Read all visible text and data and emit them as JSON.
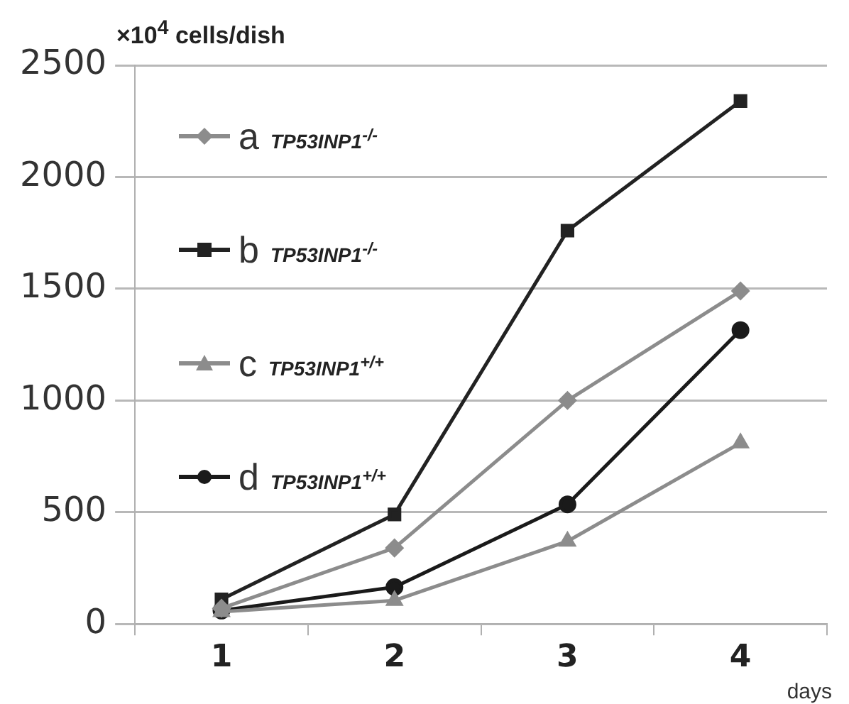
{
  "chart_data": {
    "type": "line",
    "ylabel": "×10$^{4}$ cells/dish",
    "xlabel": "days",
    "categories": [
      "1",
      "2",
      "3",
      "4"
    ],
    "series": [
      {
        "name": "a TP53INP1$^{-/-}$",
        "color": "#8c8c8c",
        "marker": "diamond",
        "values": [
          70,
          340,
          1000,
          1490
        ]
      },
      {
        "name": "b TP53INP1$^{-/-}$",
        "color": "#222222",
        "marker": "square",
        "values": [
          110,
          490,
          1760,
          2340
        ]
      },
      {
        "name": "c TP53INP1$^{+/+}$",
        "color": "#8c8c8c",
        "marker": "triangle",
        "values": [
          55,
          105,
          370,
          810
        ]
      },
      {
        "name": "d TP53INP1$^{+/+}$",
        "color": "#1a1a1a",
        "marker": "circle",
        "values": [
          60,
          165,
          535,
          1315
        ]
      }
    ],
    "ylim": [
      0,
      2500
    ],
    "yticks": [
      0,
      500,
      1000,
      1500,
      2000,
      2500
    ],
    "grid": "y",
    "legend": "top left"
  }
}
